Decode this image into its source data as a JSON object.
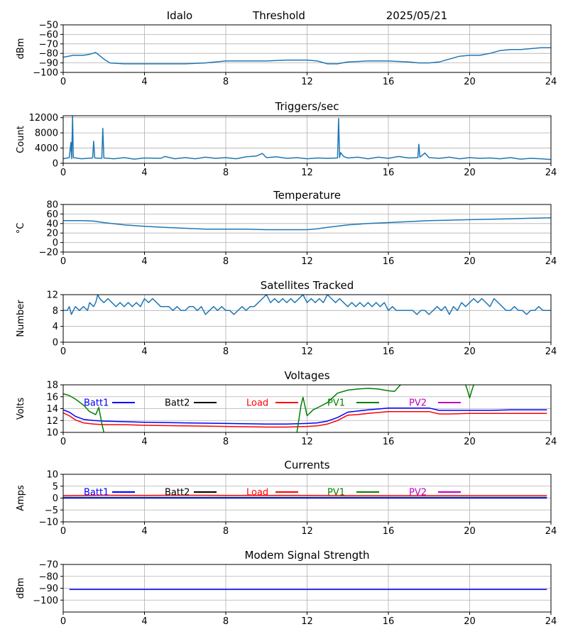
{
  "header": {
    "site": "Idalo",
    "label": "Threshold",
    "date": "2025/05/21"
  },
  "colors": {
    "default": "#1f77b4",
    "batt1": "#0000ff",
    "batt2": "#000000",
    "load": "#ff0000",
    "pv1": "#008000",
    "pv2": "#bf00bf",
    "grid": "#b0b0b0"
  },
  "chart_data": [
    {
      "id": "threshold",
      "type": "line",
      "title": "",
      "ylabel": "dBm",
      "xlim": [
        0,
        24
      ],
      "xticks": [
        0,
        4,
        8,
        12,
        16,
        20,
        24
      ],
      "ylim": [
        -100,
        -50
      ],
      "yticks": [
        -100,
        -90,
        -80,
        -70,
        -60,
        -50
      ],
      "grid": true,
      "series": [
        {
          "color_key": "default",
          "x": [
            0,
            0.5,
            1,
            1.3,
            1.6,
            2.0,
            2.3,
            3,
            4,
            5,
            6,
            7,
            7.5,
            8,
            9,
            10,
            11,
            11.5,
            12,
            12.5,
            13,
            13.5,
            14,
            15,
            16,
            17,
            17.5,
            18,
            18.5,
            19,
            19.5,
            20,
            20.5,
            21,
            21.5,
            22,
            22.5,
            23,
            23.5,
            24
          ],
          "y": [
            -84,
            -82,
            -82,
            -81,
            -79,
            -86,
            -90,
            -91,
            -91,
            -91,
            -91,
            -90,
            -89,
            -88,
            -88,
            -88,
            -87,
            -87,
            -87,
            -88,
            -91,
            -91,
            -89,
            -88,
            -88,
            -89,
            -90,
            -90,
            -89,
            -86,
            -83,
            -82,
            -82,
            -80,
            -77,
            -76,
            -76,
            -75,
            -74,
            -74
          ]
        }
      ]
    },
    {
      "id": "triggers",
      "type": "line",
      "title": "Triggers/sec",
      "ylabel": "Count",
      "xlim": [
        0,
        24
      ],
      "xticks": [
        0,
        4,
        8,
        12,
        16,
        20,
        24
      ],
      "ylim": [
        0,
        12500
      ],
      "yticks": [
        0,
        4000,
        8000,
        12000
      ],
      "grid": true,
      "series": [
        {
          "color_key": "default",
          "x": [
            0,
            0.3,
            0.38,
            0.42,
            0.46,
            0.5,
            0.9,
            1.45,
            1.5,
            1.55,
            1.9,
            1.95,
            2.0,
            2.5,
            3,
            3.5,
            4,
            4.8,
            5,
            5.5,
            6,
            6.5,
            7,
            7.5,
            8,
            8.5,
            9,
            9.5,
            9.8,
            10,
            10.5,
            11,
            11.5,
            12,
            12.5,
            13,
            13.5,
            13.55,
            13.6,
            13.65,
            13.8,
            14,
            14.5,
            15,
            15.5,
            16,
            16.5,
            17,
            17.45,
            17.5,
            17.55,
            17.8,
            18,
            18.5,
            19,
            19.5,
            20,
            20.5,
            21,
            21.5,
            22,
            22.5,
            23,
            23.5,
            24
          ],
          "y": [
            1200,
            1500,
            5500,
            1200,
            12500,
            1500,
            1200,
            1400,
            5800,
            1400,
            1300,
            9200,
            1400,
            1200,
            1500,
            1100,
            1400,
            1300,
            1800,
            1200,
            1500,
            1200,
            1600,
            1300,
            1500,
            1200,
            1700,
            1900,
            2600,
            1500,
            1700,
            1300,
            1500,
            1200,
            1400,
            1300,
            1400,
            11800,
            1500,
            2800,
            1800,
            1400,
            1600,
            1200,
            1600,
            1300,
            1800,
            1400,
            1500,
            5000,
            1600,
            2700,
            1500,
            1300,
            1600,
            1200,
            1500,
            1300,
            1400,
            1200,
            1500,
            1100,
            1300,
            1200,
            1000
          ]
        }
      ]
    },
    {
      "id": "temperature",
      "type": "line",
      "title": "Temperature",
      "ylabel": "°C",
      "xlim": [
        0,
        24
      ],
      "xticks": [
        0,
        4,
        8,
        12,
        16,
        20,
        24
      ],
      "ylim": [
        -20,
        80
      ],
      "yticks": [
        -20,
        0,
        20,
        40,
        60,
        80
      ],
      "grid": true,
      "series": [
        {
          "color_key": "default",
          "x": [
            0,
            1,
            1.5,
            2,
            3,
            4,
            5,
            6,
            7,
            8,
            9,
            10,
            11,
            12,
            12.5,
            13,
            14,
            15,
            16,
            17,
            18,
            19,
            20,
            21,
            22,
            23,
            24
          ],
          "y": [
            46,
            46,
            45,
            42,
            37,
            34,
            32,
            30,
            28,
            28,
            28,
            27,
            27,
            27,
            29,
            32,
            37,
            40,
            42,
            44,
            46,
            47,
            48,
            49,
            50,
            51,
            52
          ]
        }
      ]
    },
    {
      "id": "satellites",
      "type": "line",
      "title": "Satellites Tracked",
      "ylabel": "Number",
      "xlim": [
        0,
        24
      ],
      "xticks": [
        0,
        4,
        8,
        12,
        16,
        20,
        24
      ],
      "ylim": [
        0,
        12
      ],
      "yticks": [
        0,
        4,
        8,
        12
      ],
      "grid": true,
      "series": [
        {
          "color_key": "default",
          "x": [
            0,
            0.2,
            0.3,
            0.4,
            0.6,
            0.8,
            1.0,
            1.2,
            1.3,
            1.5,
            1.6,
            1.7,
            1.8,
            2.0,
            2.2,
            2.4,
            2.6,
            2.8,
            3.0,
            3.2,
            3.4,
            3.6,
            3.8,
            4.0,
            4.2,
            4.4,
            4.6,
            4.8,
            5.0,
            5.2,
            5.4,
            5.6,
            5.8,
            6.0,
            6.2,
            6.4,
            6.6,
            6.8,
            7.0,
            7.2,
            7.4,
            7.6,
            7.8,
            8.0,
            8.2,
            8.4,
            8.6,
            8.8,
            9.0,
            9.2,
            9.4,
            9.6,
            9.8,
            10.0,
            10.2,
            10.4,
            10.6,
            10.8,
            11.0,
            11.2,
            11.4,
            11.6,
            11.8,
            12.0,
            12.2,
            12.4,
            12.6,
            12.8,
            13.0,
            13.2,
            13.4,
            13.6,
            13.8,
            14.0,
            14.2,
            14.4,
            14.6,
            14.8,
            15.0,
            15.2,
            15.4,
            15.6,
            15.8,
            16.0,
            16.2,
            16.4,
            16.6,
            16.8,
            17.0,
            17.2,
            17.4,
            17.6,
            17.8,
            18.0,
            18.2,
            18.4,
            18.6,
            18.8,
            19.0,
            19.2,
            19.4,
            19.6,
            19.8,
            20.0,
            20.2,
            20.4,
            20.6,
            20.8,
            21.0,
            21.2,
            21.4,
            21.6,
            21.8,
            22.0,
            22.2,
            22.4,
            22.6,
            22.8,
            23.0,
            23.2,
            23.4,
            23.6,
            23.8,
            24.0
          ],
          "y": [
            8,
            8,
            9,
            7,
            9,
            8,
            9,
            8,
            10,
            9,
            10,
            12,
            11,
            10,
            11,
            10,
            9,
            10,
            9,
            10,
            9,
            10,
            9,
            11,
            10,
            11,
            10,
            9,
            9,
            9,
            8,
            9,
            8,
            8,
            9,
            9,
            8,
            9,
            7,
            8,
            9,
            8,
            9,
            8,
            8,
            7,
            8,
            9,
            8,
            9,
            9,
            10,
            11,
            12,
            10,
            11,
            10,
            11,
            10,
            11,
            10,
            11,
            12,
            10,
            11,
            10,
            11,
            10,
            12,
            11,
            10,
            11,
            10,
            9,
            10,
            9,
            10,
            9,
            10,
            9,
            10,
            9,
            10,
            8,
            9,
            8,
            8,
            8,
            8,
            8,
            7,
            8,
            8,
            7,
            8,
            9,
            8,
            9,
            7,
            9,
            8,
            10,
            9,
            10,
            11,
            10,
            11,
            10,
            9,
            11,
            10,
            9,
            8,
            8,
            9,
            8,
            8,
            7,
            8,
            8,
            9,
            8,
            8,
            8
          ]
        }
      ]
    },
    {
      "id": "voltages",
      "type": "line",
      "title": "Voltages",
      "ylabel": "Volts",
      "xlim": [
        0,
        24
      ],
      "xticks": [
        0,
        4,
        8,
        12,
        16,
        20,
        24
      ],
      "ylim": [
        10,
        18
      ],
      "yticks": [
        10,
        12,
        14,
        16,
        18
      ],
      "grid": true,
      "legend": [
        "Batt1",
        "Batt2",
        "Load",
        "PV1",
        "PV2"
      ],
      "series": [
        {
          "name": "Batt1",
          "color_key": "batt1",
          "x": [
            0,
            0.3,
            0.6,
            1.0,
            1.5,
            2,
            3,
            4,
            6,
            8,
            10,
            11,
            12,
            12.5,
            13,
            13.5,
            14,
            14.5,
            15,
            16,
            17,
            18,
            18.5,
            19,
            20,
            21,
            22,
            23,
            23.8
          ],
          "y": [
            13.8,
            13.4,
            12.7,
            12.2,
            12.0,
            11.9,
            11.8,
            11.7,
            11.6,
            11.5,
            11.4,
            11.4,
            11.5,
            11.6,
            11.9,
            12.5,
            13.4,
            13.6,
            13.8,
            14.1,
            14.1,
            14.1,
            13.7,
            13.7,
            13.7,
            13.7,
            13.8,
            13.8,
            13.8
          ]
        },
        {
          "name": "Load",
          "color_key": "load",
          "x": [
            0,
            0.3,
            0.6,
            1.0,
            1.5,
            2,
            3,
            4,
            6,
            8,
            10,
            11,
            12,
            12.5,
            13,
            13.5,
            14,
            14.5,
            15,
            16,
            17,
            18,
            18.5,
            19,
            20,
            21,
            22,
            23,
            23.8
          ],
          "y": [
            13.3,
            12.8,
            12.1,
            11.6,
            11.4,
            11.3,
            11.3,
            11.2,
            11.1,
            11.0,
            10.9,
            10.9,
            11.0,
            11.1,
            11.4,
            12.0,
            12.9,
            13.0,
            13.2,
            13.5,
            13.5,
            13.5,
            13.1,
            13.1,
            13.2,
            13.2,
            13.2,
            13.2,
            13.2
          ]
        },
        {
          "name": "PV1",
          "color_key": "pv1",
          "x": [
            0,
            0.3,
            0.6,
            1.0,
            1.3,
            1.6,
            1.75,
            1.9,
            2.0
          ],
          "y": [
            16.5,
            16.2,
            15.6,
            14.6,
            13.5,
            13.0,
            14.2,
            11.5,
            10.0
          ]
        },
        {
          "name": "PV1",
          "color_key": "pv1",
          "x": [
            11.5,
            11.7,
            11.8,
            12.0,
            12.3,
            12.6,
            13.0,
            13.5,
            14.0,
            14.5,
            15.0,
            15.5,
            16.0,
            16.3,
            16.6
          ],
          "y": [
            10.0,
            14.5,
            15.9,
            12.8,
            13.8,
            14.3,
            15.0,
            16.6,
            17.1,
            17.3,
            17.4,
            17.3,
            17.0,
            16.9,
            18.0
          ]
        },
        {
          "name": "PV1",
          "color_key": "pv1",
          "x": [
            19.8,
            19.9,
            20.0,
            20.1,
            20.2
          ],
          "y": [
            18.0,
            17.0,
            15.8,
            17.0,
            18.0
          ]
        }
      ]
    },
    {
      "id": "currents",
      "type": "line",
      "title": "Currents",
      "ylabel": "Amps",
      "xlim": [
        0,
        24
      ],
      "xticks": [
        0,
        4,
        8,
        12,
        16,
        20,
        24
      ],
      "ylim": [
        -10,
        10
      ],
      "yticks": [
        -10,
        -5,
        0,
        5,
        10
      ],
      "grid": true,
      "legend": [
        "Batt1",
        "Batt2",
        "Load",
        "PV1",
        "PV2"
      ],
      "series": [
        {
          "name": "Load",
          "color_key": "load",
          "x": [
            0,
            2,
            4,
            6,
            8,
            10,
            12,
            14,
            16,
            18,
            20,
            22,
            23.8
          ],
          "y": [
            1.0,
            1.2,
            1.1,
            1.2,
            1.1,
            1.1,
            1.1,
            1.0,
            1.0,
            1.0,
            1.0,
            1.0,
            1.0
          ]
        },
        {
          "name": "PV1",
          "color_key": "pv1",
          "x": [
            0,
            23.8
          ],
          "y": [
            0.3,
            0.3
          ]
        },
        {
          "name": "PV2",
          "color_key": "pv2",
          "x": [
            0,
            23.8
          ],
          "y": [
            0.1,
            0.1
          ]
        },
        {
          "name": "Batt1",
          "color_key": "batt1",
          "x": [
            0,
            23.8
          ],
          "y": [
            0.0,
            0.0
          ]
        }
      ]
    },
    {
      "id": "modem",
      "type": "line",
      "title": "Modem Signal Strength",
      "ylabel": "dBm",
      "xlim": [
        0,
        24
      ],
      "xticks": [
        0,
        4,
        8,
        12,
        16,
        20,
        24
      ],
      "ylim": [
        -110,
        -70
      ],
      "yticks": [
        -100,
        -90,
        -80,
        -70
      ],
      "grid": true,
      "series": [
        {
          "color_key": "batt1",
          "x": [
            0.3,
            23.8
          ],
          "y": [
            -91,
            -91
          ]
        }
      ]
    }
  ]
}
